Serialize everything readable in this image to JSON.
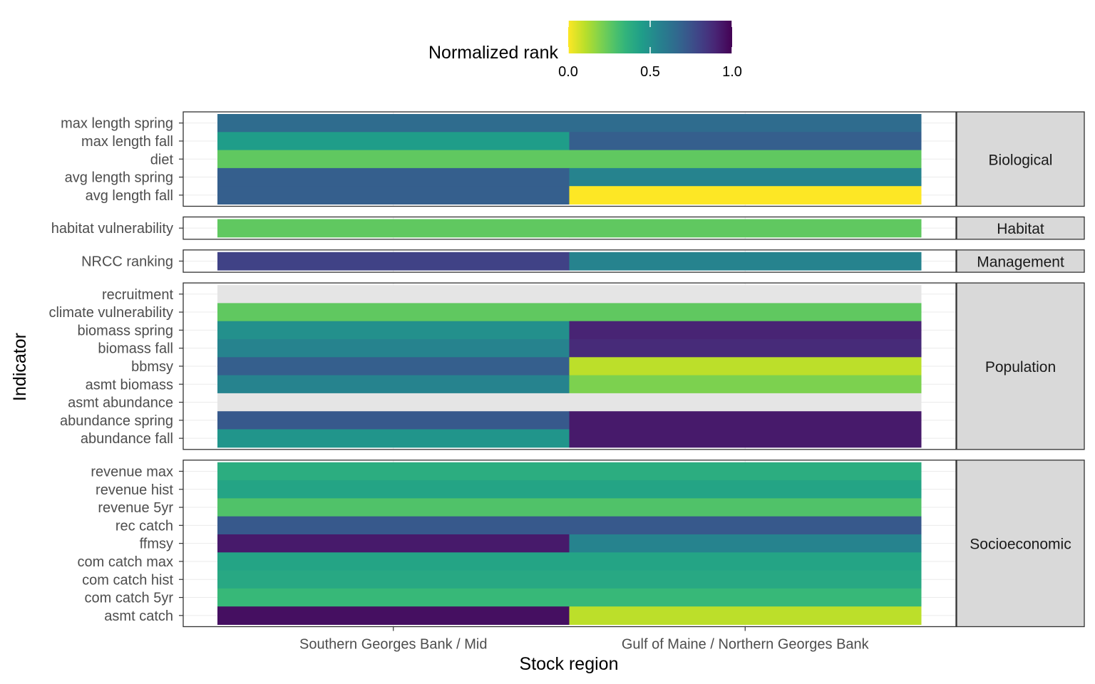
{
  "chart_data": {
    "type": "heatmap",
    "title": "",
    "xlabel": "Stock region",
    "ylabel": "Indicator",
    "legend": {
      "title": "Normalized rank",
      "position": "top",
      "ticks": [
        "0.0",
        "0.5",
        "1.0"
      ],
      "tick_values": [
        0,
        0.5,
        1
      ],
      "colormap": "viridis (reversed: 0 = yellow, 1 = dark purple)"
    },
    "grid": true,
    "na_color": "#e5e5e5",
    "x_categories": [
      "Southern Georges Bank / Mid",
      "Gulf of Maine / Northern Georges Bank"
    ],
    "facets": [
      {
        "name": "Biological",
        "rows": [
          {
            "indicator": "max length spring",
            "values": [
              0.65,
              0.65
            ]
          },
          {
            "indicator": "max length fall",
            "values": [
              0.45,
              0.7
            ]
          },
          {
            "indicator": "diet",
            "values": [
              0.25,
              0.25
            ]
          },
          {
            "indicator": "avg length spring",
            "values": [
              0.7,
              0.55
            ]
          },
          {
            "indicator": "avg length fall",
            "values": [
              0.7,
              0.0
            ]
          }
        ]
      },
      {
        "name": "Habitat",
        "rows": [
          {
            "indicator": "habitat vulnerability",
            "values": [
              0.25,
              0.25
            ]
          }
        ]
      },
      {
        "name": "Management",
        "rows": [
          {
            "indicator": "NRCC ranking",
            "values": [
              0.8,
              0.55
            ]
          }
        ]
      },
      {
        "name": "Population",
        "rows": [
          {
            "indicator": "recruitment",
            "values": [
              null,
              null
            ]
          },
          {
            "indicator": "climate vulnerability",
            "values": [
              0.25,
              0.25
            ]
          },
          {
            "indicator": "biomass spring",
            "values": [
              0.5,
              0.9
            ]
          },
          {
            "indicator": "biomass fall",
            "values": [
              0.55,
              0.88
            ]
          },
          {
            "indicator": "bbmsy",
            "values": [
              0.7,
              0.1
            ]
          },
          {
            "indicator": "asmt biomass",
            "values": [
              0.55,
              0.2
            ]
          },
          {
            "indicator": "asmt abundance",
            "values": [
              null,
              null
            ]
          },
          {
            "indicator": "abundance spring",
            "values": [
              0.72,
              0.93
            ]
          },
          {
            "indicator": "abundance fall",
            "values": [
              0.48,
              0.93
            ]
          }
        ]
      },
      {
        "name": "Socioeconomic",
        "rows": [
          {
            "indicator": "revenue max",
            "values": [
              0.38,
              0.38
            ]
          },
          {
            "indicator": "revenue hist",
            "values": [
              0.42,
              0.42
            ]
          },
          {
            "indicator": "revenue 5yr",
            "values": [
              0.28,
              0.28
            ]
          },
          {
            "indicator": "rec catch",
            "values": [
              0.72,
              0.72
            ]
          },
          {
            "indicator": "ffmsy",
            "values": [
              0.93,
              0.55
            ]
          },
          {
            "indicator": "com catch max",
            "values": [
              0.42,
              0.42
            ]
          },
          {
            "indicator": "com catch hist",
            "values": [
              0.4,
              0.4
            ]
          },
          {
            "indicator": "com catch 5yr",
            "values": [
              0.33,
              0.33
            ]
          },
          {
            "indicator": "asmt catch",
            "values": [
              0.96,
              0.1
            ]
          }
        ]
      }
    ]
  }
}
